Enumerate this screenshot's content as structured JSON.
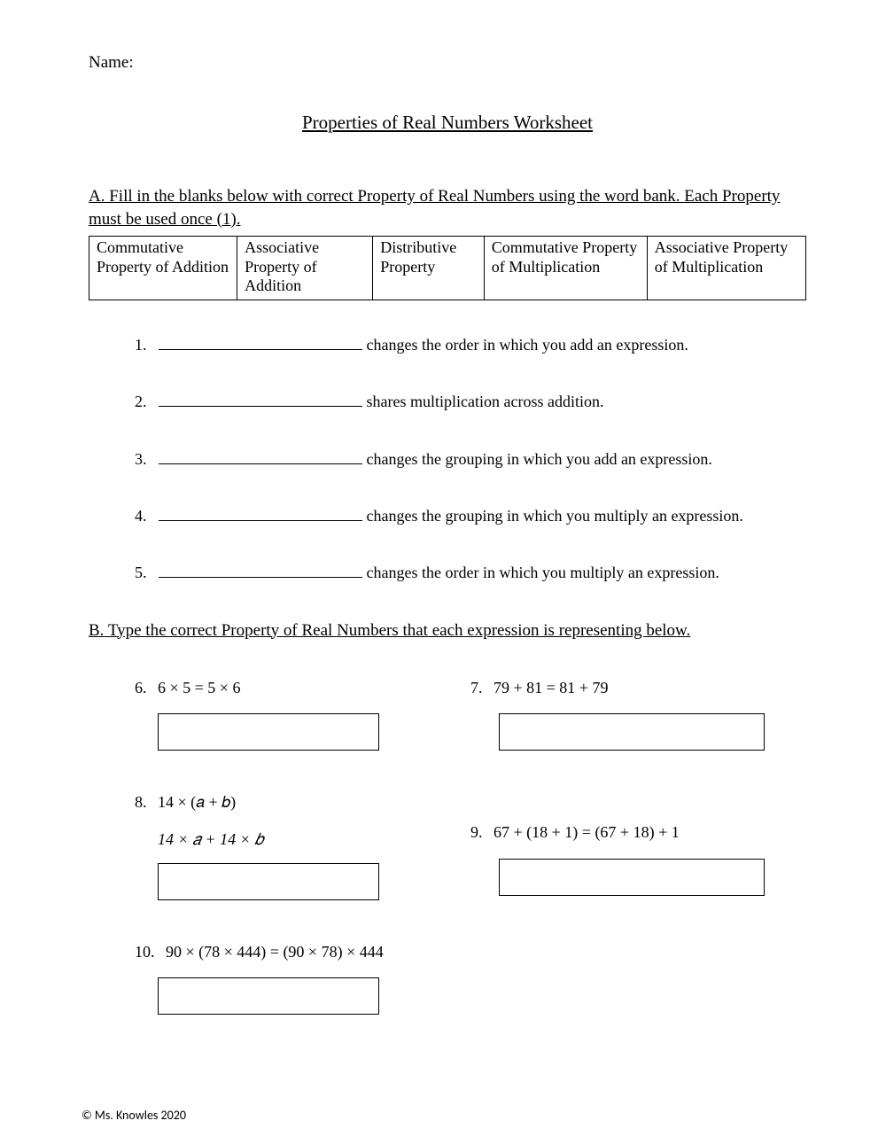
{
  "name_label": "Name:",
  "title": "Properties of Real Numbers Worksheet",
  "sectionA": {
    "heading": "A. Fill in the blanks below with correct Property of Real Numbers using the word bank. Each Property must be used once (1).",
    "wordbank": [
      "Commutative Property of Addition",
      "Associative Property of Addition",
      "Distributive Property",
      "Commutative Property of Multiplication",
      "Associative Property of Multiplication"
    ],
    "items": [
      {
        "num": "1.",
        "text": " changes the order in which you add an expression."
      },
      {
        "num": "2.",
        "text": " shares multiplication across addition."
      },
      {
        "num": "3.",
        "text": " changes the grouping in which you add an expression."
      },
      {
        "num": "4.",
        "text": " changes the grouping in which you multiply an expression."
      },
      {
        "num": "5.",
        "text": " changes the order in which you multiply an expression."
      }
    ]
  },
  "sectionB": {
    "heading": "B. Type the correct Property of Real Numbers that each expression is representing below.",
    "q6": {
      "num": "6.",
      "expr": "6 × 5 = 5 × 6"
    },
    "q7": {
      "num": "7.",
      "expr": "79 + 81 = 81 + 79"
    },
    "q8": {
      "num": "8.",
      "line1": "14 × (𝑎 + 𝑏)",
      "line2": "14 × 𝑎 + 14 × 𝑏"
    },
    "q9": {
      "num": "9.",
      "expr": "67 + (18 + 1) = (67 + 18) + 1"
    },
    "q10": {
      "num": "10.",
      "expr": "90 × (78 × 444) = (90 × 78) × 444"
    }
  },
  "footer": "© Ms. Knowles 2020"
}
